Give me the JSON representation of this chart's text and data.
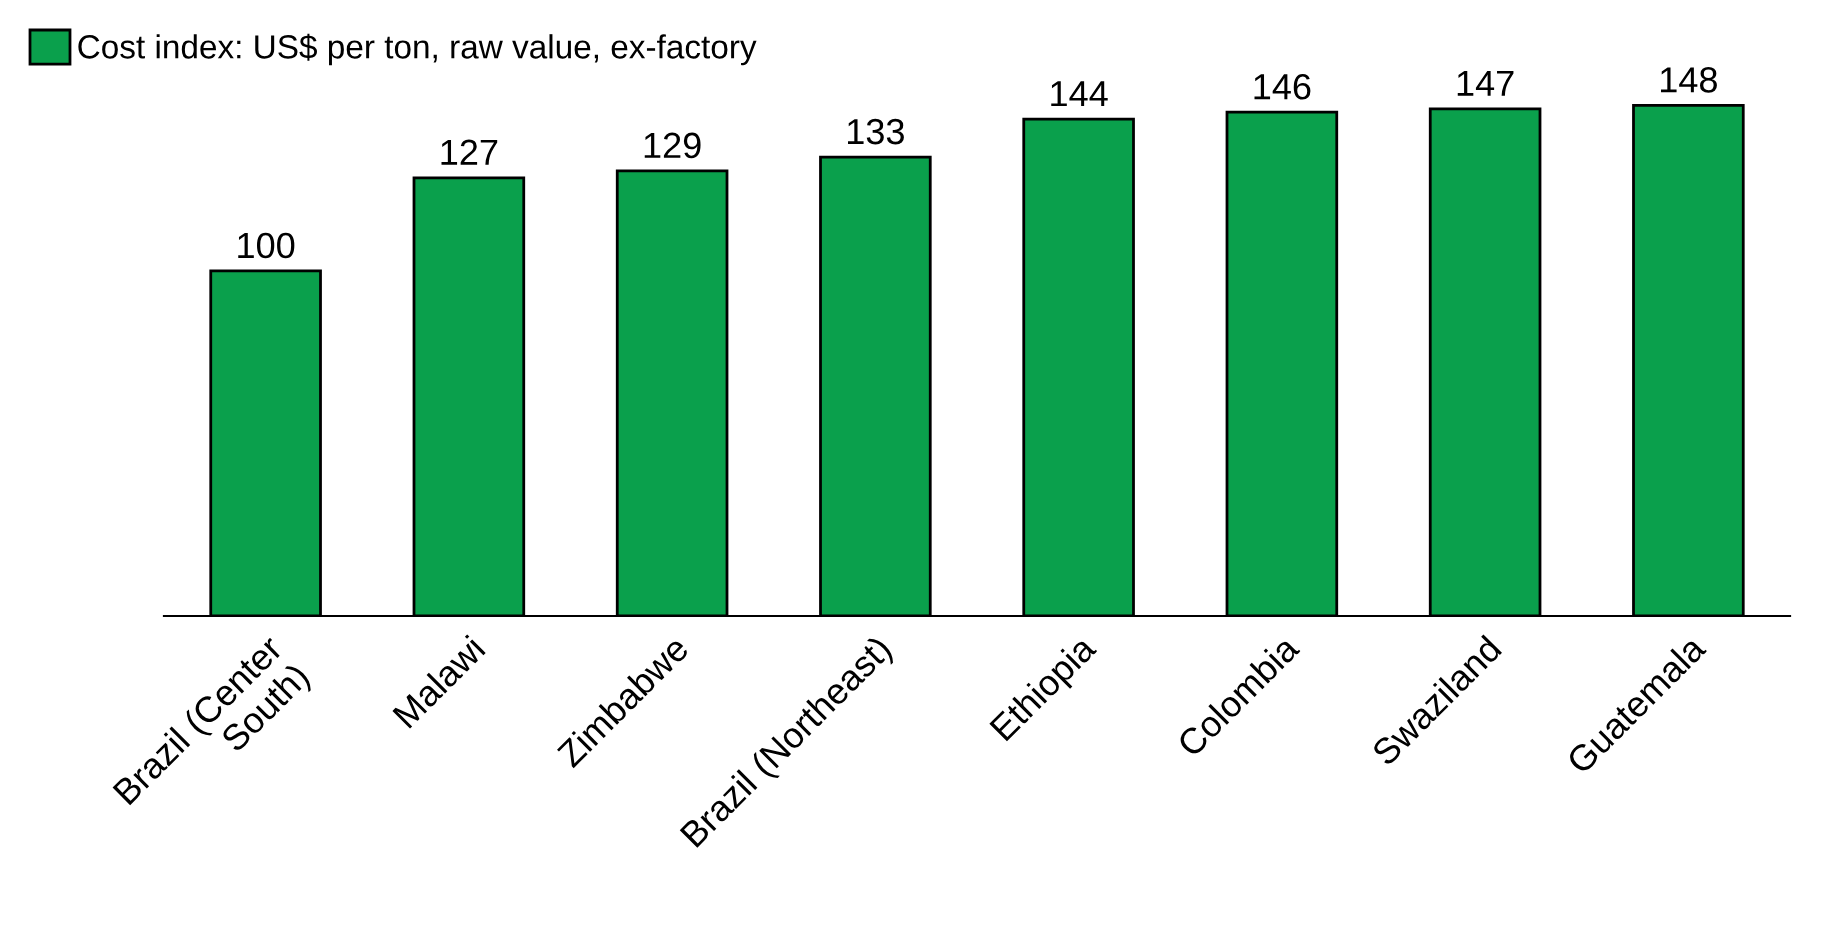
{
  "chart_data": {
    "type": "bar",
    "categories": [
      "Brazil (Center\nSouth)",
      "Malawi",
      "Zimbabwe",
      "Brazil (Northeast)",
      "Ethiopia",
      "Colombia",
      "Swaziland",
      "Guatemala"
    ],
    "series": [
      {
        "name": "Cost index: US$ per ton, raw value, ex-factory",
        "color": "#0aa04c",
        "values": [
          100,
          127,
          129,
          133,
          144,
          146,
          147,
          148
        ]
      }
    ],
    "data_labels": true,
    "legend": "top left",
    "grid": false
  }
}
